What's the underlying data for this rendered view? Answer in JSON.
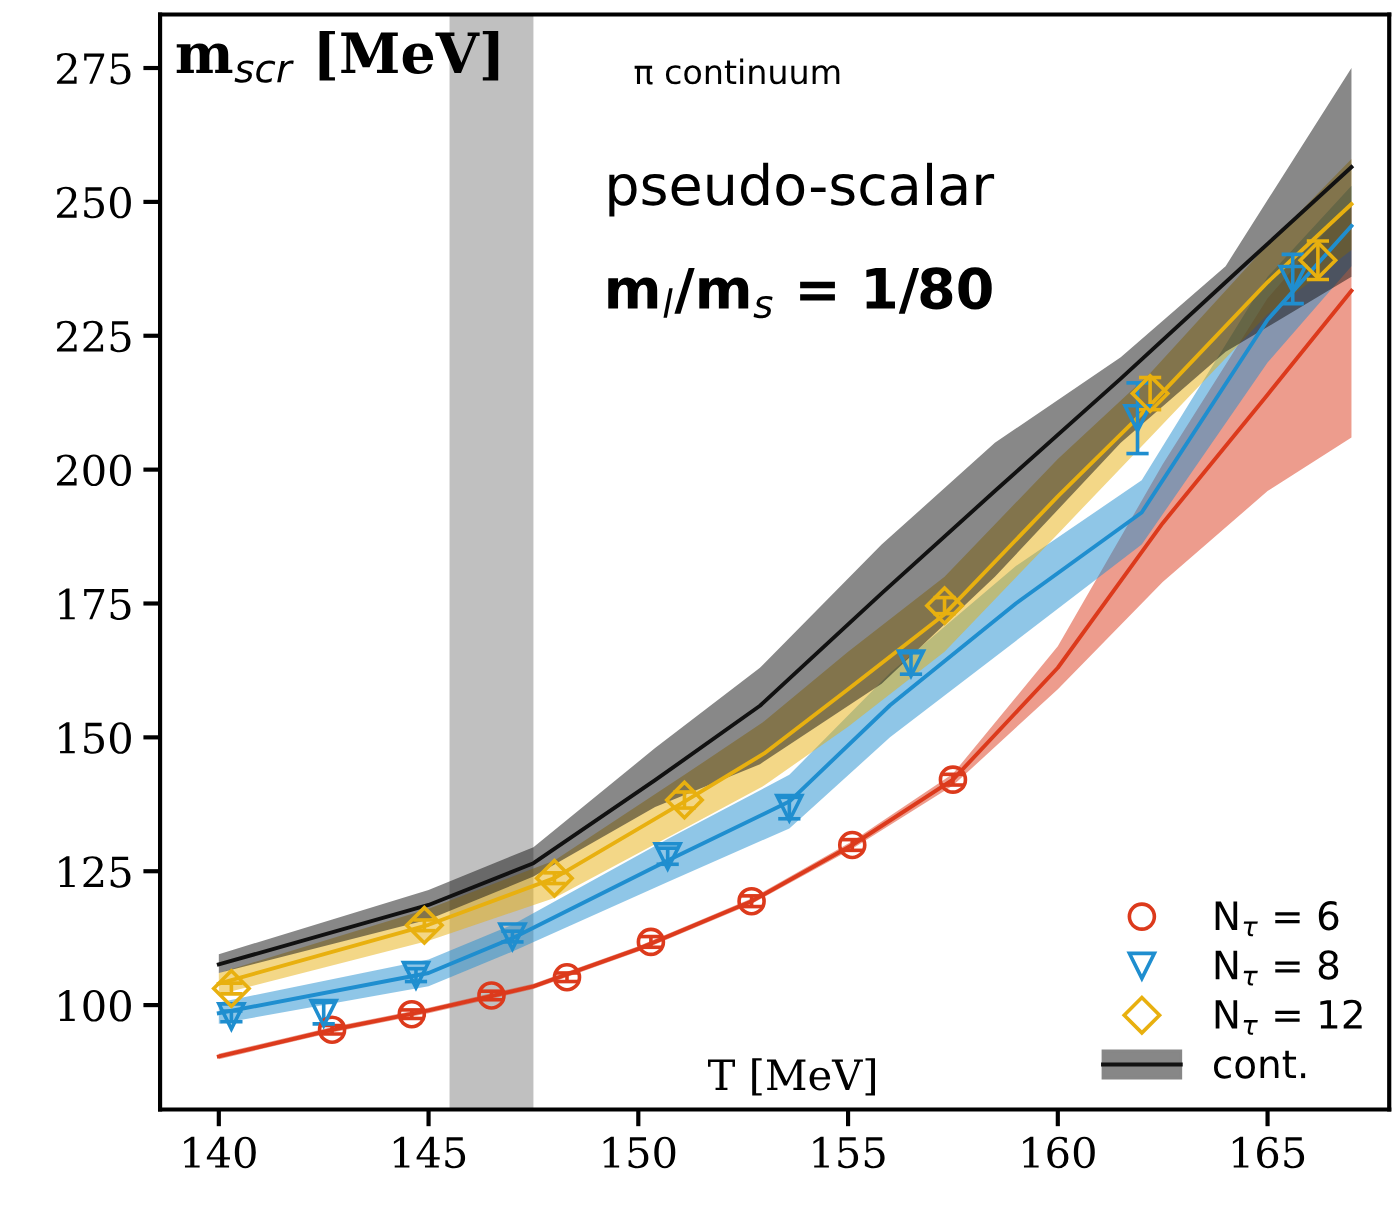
{
  "chart_data": {
    "type": "line",
    "ylabel": "m$_{scr}$ [MeV]",
    "xlabel": "T [MeV]",
    "annotations": [
      "π continuum",
      "pseudo-scalar",
      "m$_{l}$/m$_{s}$ = 1/80"
    ],
    "xlim": [
      138.6,
      167.9
    ],
    "ylim": [
      80.5,
      285
    ],
    "xticks": [
      140,
      145,
      150,
      155,
      160,
      165
    ],
    "yticks": [
      100,
      125,
      150,
      175,
      200,
      225,
      250,
      275
    ],
    "grid": false,
    "legend": "bottom right",
    "bands": [
      {
        "axis": "x",
        "from": 145.5,
        "to": 147.5,
        "color": "#c0c0c0"
      }
    ],
    "series": [
      {
        "color": "#dc3a1c",
        "x": [
          140,
          142.7,
          145,
          147.5,
          150,
          152.7,
          155.1,
          157.5,
          160,
          162.5,
          165,
          167
        ],
        "values": [
          90.4,
          95.4,
          99,
          103.5,
          110.5,
          119.4,
          129.9,
          142.1,
          163,
          190,
          214,
          233.4
        ],
        "lower": [
          89.9,
          94.9,
          98.5,
          103,
          110,
          118.9,
          129.2,
          141,
          159,
          179,
          196,
          206
        ],
        "upper": [
          90.9,
          95.9,
          99.5,
          104,
          111,
          119.9,
          130.6,
          143.2,
          167,
          201,
          232,
          250
        ]
      },
      {
        "color": "#1f8ecf",
        "x": [
          140,
          145,
          147,
          150.7,
          153.6,
          156,
          159,
          162,
          165,
          167
        ],
        "values": [
          98.5,
          106,
          112.5,
          127,
          138,
          156,
          175,
          192,
          228,
          245.5
        ],
        "lower": [
          96.5,
          103.5,
          110,
          123,
          133,
          150,
          168,
          186,
          220,
          238
        ],
        "upper": [
          100.5,
          108.5,
          115,
          131,
          143,
          162,
          182,
          198,
          236,
          253
        ]
      },
      {
        "color": "#e8b00f",
        "x": [
          140,
          145,
          148,
          151.1,
          153,
          155,
          157.3,
          160,
          162.2,
          165,
          167
        ],
        "values": [
          104,
          115,
          123.7,
          138,
          147,
          159,
          173,
          195,
          212,
          235,
          249.6
        ],
        "lower": [
          102,
          112,
          120,
          133,
          141,
          152,
          166,
          188,
          206,
          229,
          241
        ],
        "upper": [
          106,
          118,
          127,
          143,
          153,
          166,
          180,
          202,
          218,
          242,
          258
        ]
      },
      {
        "name": "cont.",
        "color": "#111111",
        "x": [
          140,
          145,
          147.5,
          150.4,
          152.9,
          155.8,
          158.5,
          161.5,
          164,
          167
        ],
        "values": [
          107.6,
          118.7,
          126.5,
          142,
          155.9,
          176.9,
          196,
          217,
          235,
          256.5
        ],
        "lower": [
          106,
          116,
          124,
          137,
          145,
          160,
          180,
          205,
          222,
          236
        ],
        "upper": [
          109.5,
          121.5,
          129.5,
          148,
          163,
          186,
          205,
          221,
          238,
          275
        ]
      },
      {
        "type": "scatter",
        "name": "N$_{τ}$ = 6",
        "color": "#dc3a1c",
        "marker": "circle",
        "x": [
          142.7,
          144.6,
          146.5,
          148.3,
          150.3,
          152.7,
          155.1,
          157.5
        ],
        "values": [
          95.4,
          98.3,
          101.8,
          105.2,
          111.8,
          119.4,
          129.9,
          142.1
        ],
        "errors": [
          0.8,
          0.8,
          0.8,
          0.8,
          1,
          1,
          1,
          1
        ]
      },
      {
        "type": "scatter",
        "name": "N$_{τ}$ = 8",
        "color": "#1f8ecf",
        "marker": "triangle",
        "x": [
          140.3,
          142.5,
          144.7,
          147.0,
          150.7,
          153.6,
          156.5,
          161.9,
          165.6
        ],
        "values": [
          97.9,
          98.5,
          105.6,
          112.8,
          127.8,
          136.8,
          163.8,
          209.6,
          235.6
        ],
        "errors": [
          1,
          2,
          1.2,
          1,
          1.5,
          2,
          2,
          6.6,
          4.6
        ]
      },
      {
        "type": "scatter",
        "name": "N$_{τ}$ = 12",
        "color": "#e8b00f",
        "marker": "diamond",
        "x": [
          140.3,
          144.9,
          148.0,
          151.1,
          157.3,
          162.2,
          166.2
        ],
        "values": [
          103.1,
          114.9,
          123.7,
          138.3,
          174.6,
          214.2,
          239.1
        ],
        "errors": [
          1,
          1,
          1,
          1.5,
          1.5,
          3,
          3.6
        ]
      }
    ]
  }
}
